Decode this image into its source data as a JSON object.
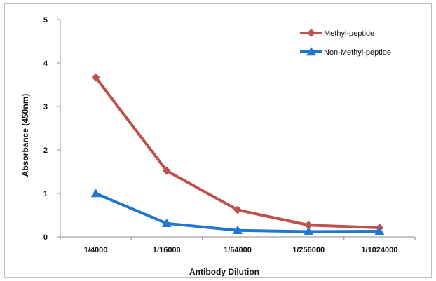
{
  "chart_data": {
    "type": "line",
    "categories": [
      "1/4000",
      "1/16000",
      "1/64000",
      "1/256000",
      "1/1024000"
    ],
    "series": [
      {
        "name": "Methyl-peptide",
        "values": [
          3.67,
          1.52,
          0.62,
          0.27,
          0.21
        ],
        "color": "#c0504d",
        "marker": "diamond"
      },
      {
        "name": "Non-Methyl-peptide",
        "values": [
          1.0,
          0.31,
          0.15,
          0.12,
          0.13
        ],
        "color": "#1f77d0",
        "marker": "triangle"
      }
    ],
    "xlabel": "Antibody Dilution",
    "ylabel": "Absorbance (450nm)",
    "ylim": [
      0,
      5
    ],
    "yticks": [
      "0",
      "1",
      "2",
      "3",
      "4",
      "5"
    ],
    "grid": false,
    "legend_position": "top-right"
  }
}
